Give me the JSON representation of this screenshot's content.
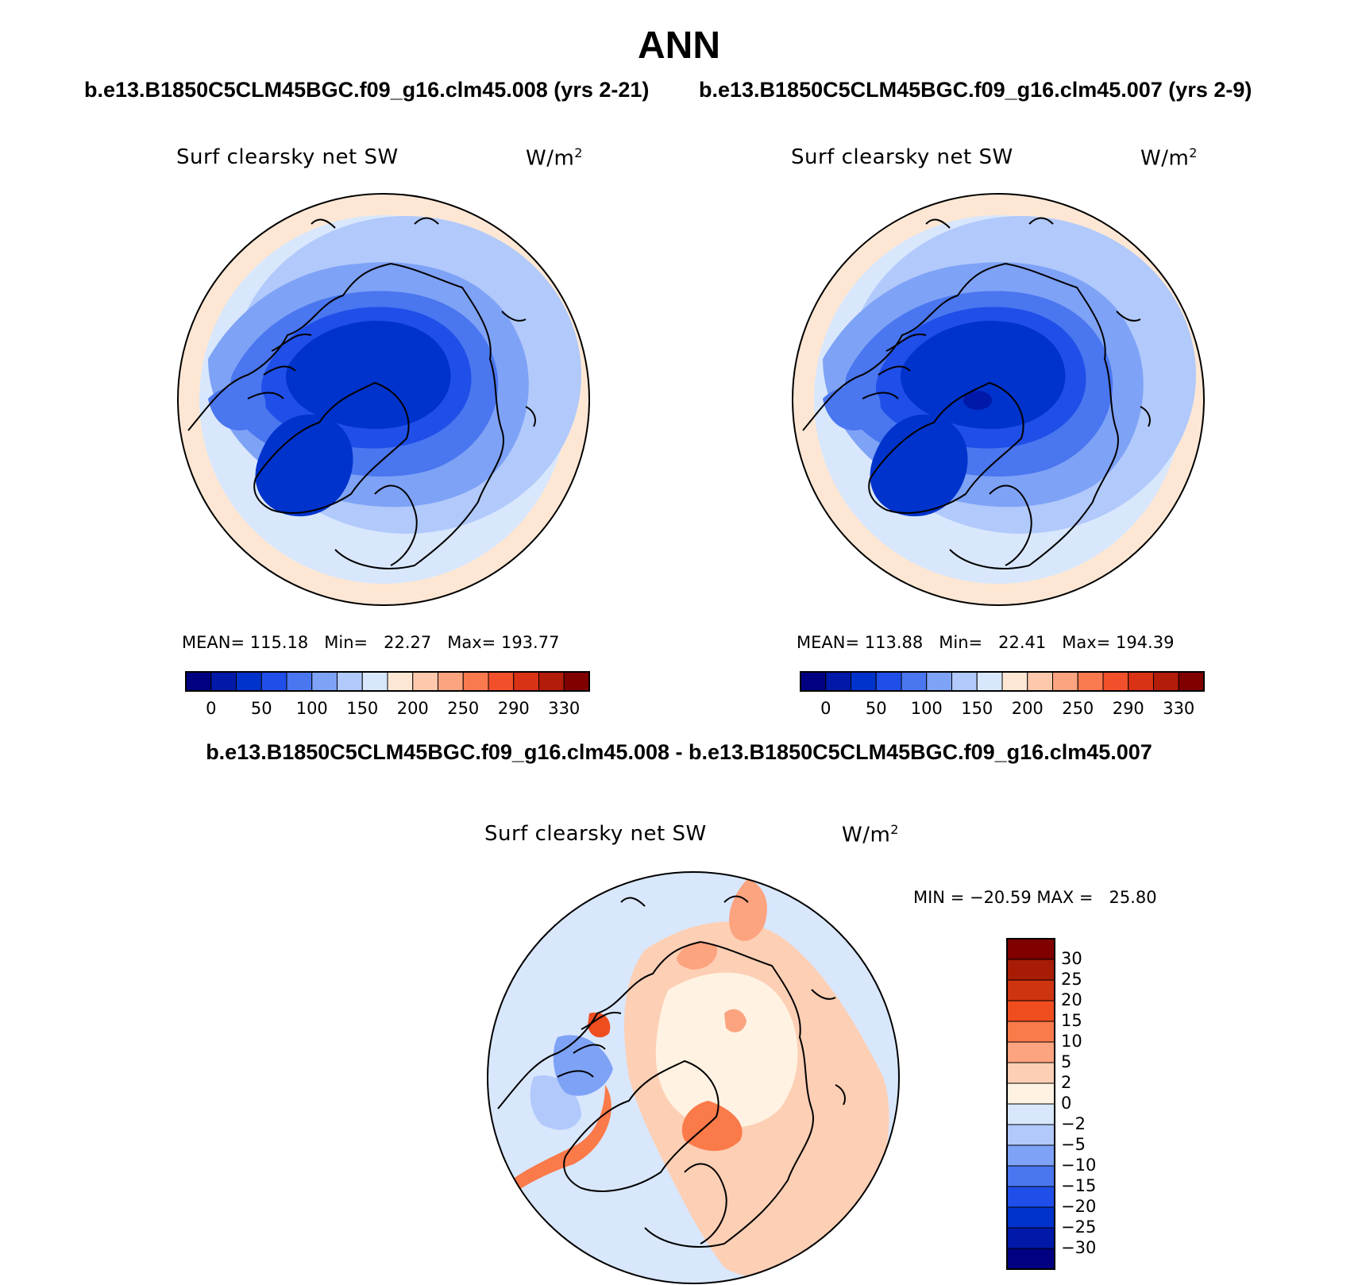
{
  "figure": {
    "title": "ANN",
    "case_a_title": "b.e13.B1850C5CLM45BGC.f09_g16.clm45.008 (yrs 2-21)",
    "case_b_title": "b.e13.B1850C5CLM45BGC.f09_g16.clm45.007 (yrs 2-9)",
    "diff_title": "b.e13.B1850C5CLM45BGC.f09_g16.clm45.008 - b.e13.B1850C5CLM45BGC.f09_g16.clm45.007"
  },
  "panels": {
    "top_left": {
      "variable": "Surf clearsky net SW",
      "units_base": "W/m",
      "units_exp": "2",
      "stats": "MEAN= 115.18   Min=   22.27   Max= 193.77"
    },
    "top_right": {
      "variable": "Surf clearsky net SW",
      "units_base": "W/m",
      "units_exp": "2",
      "stats": "MEAN= 113.88   Min=   22.41   Max= 194.39"
    },
    "diff": {
      "variable": "Surf clearsky net SW",
      "units_base": "W/m",
      "units_exp": "2",
      "stats": "MIN = −20.59 MAX =   25.80"
    }
  },
  "abs_colorbar": {
    "colors": [
      "#000080",
      "#0019a8",
      "#0033cc",
      "#1f4fe8",
      "#4a76ef",
      "#7ea2f6",
      "#b1c9fb",
      "#d8e7fc",
      "#fde7d4",
      "#fdc8ac",
      "#fca37f",
      "#f97a4f",
      "#f2502a",
      "#d93214",
      "#b31c08",
      "#800000"
    ],
    "labels": [
      "0",
      "50",
      "100",
      "150",
      "200",
      "250",
      "290",
      "330"
    ]
  },
  "diff_colorbar": {
    "colors": [
      "#800000",
      "#a81c06",
      "#cf3410",
      "#f04d1f",
      "#fb7a4a",
      "#fca37f",
      "#fdcfb4",
      "#fff2e2",
      "#d8e7fc",
      "#b1c9fb",
      "#7ea2f6",
      "#4a76ef",
      "#1f4fe8",
      "#0033cc",
      "#0019a8",
      "#000080"
    ],
    "labels": [
      "30",
      "25",
      "20",
      "15",
      "10",
      "5",
      "2",
      "0",
      "−2",
      "−5",
      "−10",
      "−15",
      "−20",
      "−25",
      "−30"
    ]
  },
  "chart_data": {
    "type": "heatmap",
    "projection": "north-polar-stereographic",
    "maps": [
      {
        "name": "b.e13.B1850C5CLM45BGC.f09_g16.clm45.008 (yrs 2-21)",
        "mean": 115.18,
        "min": 22.27,
        "max": 193.77
      },
      {
        "name": "b.e13.B1850C5CLM45BGC.f09_g16.clm45.007 (yrs 2-9)",
        "mean": 113.88,
        "min": 22.41,
        "max": 194.39
      },
      {
        "name": "b.e13.B1850C5CLM45BGC.f09_g16.clm45.008 - b.e13.B1850C5CLM45BGC.f09_g16.clm45.007",
        "min": -20.59,
        "max": 25.8
      }
    ],
    "abs_levels": [
      0,
      50,
      100,
      150,
      200,
      250,
      290,
      330
    ],
    "diff_levels": [
      -30,
      -25,
      -20,
      -15,
      -10,
      -5,
      -2,
      0,
      2,
      5,
      10,
      15,
      20,
      25,
      30
    ]
  }
}
